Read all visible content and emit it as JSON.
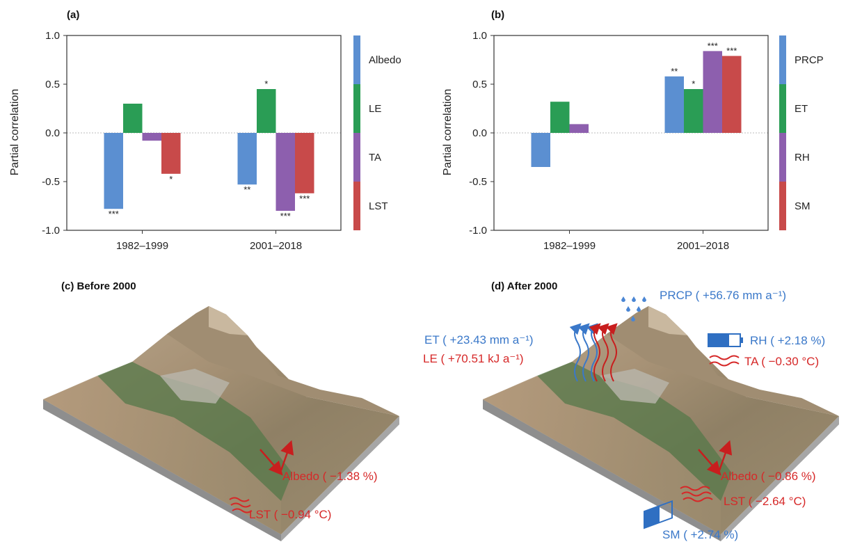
{
  "colors": {
    "blue": "#5b8fd1",
    "green": "#2a9d55",
    "purple": "#8d5fae",
    "red": "#c84a4a",
    "ann_red": "#d62828",
    "ann_blue": "#3a78c9"
  },
  "chart_data": [
    {
      "type": "bar",
      "panel_label": "(a)",
      "ylabel": "Partial correlation",
      "ylim": [
        -1.0,
        1.0
      ],
      "yticks": [
        "1.0",
        "0.5",
        "0.0",
        "-0.5",
        "-1.0"
      ],
      "categories": [
        "1982–1999",
        "2001–2018"
      ],
      "series": [
        {
          "name": "Albedo",
          "color": "#5b8fd1",
          "values": [
            -0.78,
            -0.53
          ],
          "sig": [
            "***",
            "**"
          ]
        },
        {
          "name": "LE",
          "color": "#2a9d55",
          "values": [
            0.3,
            0.45
          ],
          "sig": [
            "",
            "*"
          ]
        },
        {
          "name": "TA",
          "color": "#8d5fae",
          "values": [
            -0.08,
            -0.8
          ],
          "sig": [
            "",
            "***"
          ]
        },
        {
          "name": "LST",
          "color": "#c84a4a",
          "values": [
            -0.42,
            -0.62
          ],
          "sig": [
            "*",
            "***"
          ]
        }
      ]
    },
    {
      "type": "bar",
      "panel_label": "(b)",
      "ylabel": "Partial correlation",
      "ylim": [
        -1.0,
        1.0
      ],
      "yticks": [
        "1.0",
        "0.5",
        "0.0",
        "-0.5",
        "-1.0"
      ],
      "categories": [
        "1982–1999",
        "2001–2018"
      ],
      "series": [
        {
          "name": "PRCP",
          "color": "#5b8fd1",
          "values": [
            -0.35,
            0.58
          ],
          "sig": [
            "",
            "**"
          ]
        },
        {
          "name": "ET",
          "color": "#2a9d55",
          "values": [
            0.32,
            0.45
          ],
          "sig": [
            "",
            "*"
          ]
        },
        {
          "name": "RH",
          "color": "#8d5fae",
          "values": [
            0.09,
            0.84
          ],
          "sig": [
            "",
            "***"
          ]
        },
        {
          "name": "SM",
          "color": "#c84a4a",
          "values": [
            0.0,
            0.79
          ],
          "sig": [
            "",
            "***"
          ]
        }
      ]
    }
  ],
  "panel_c": {
    "title": "(c) Before 2000",
    "albedo": "Albedo ( −1.38 %)",
    "lst": "LST ( −0.94 °C)"
  },
  "panel_d": {
    "title": "(d) After 2000",
    "prcp": "PRCP ( +56.76 mm a⁻¹)",
    "et": "ET ( +23.43 mm a⁻¹)",
    "le": "LE ( +70.51 kJ a⁻¹)",
    "rh": "RH ( +2.18 %)",
    "ta": "TA ( −0.30 °C)",
    "albedo": "Albedo ( −0.86 %)",
    "lst": "LST ( −2.64 °C)",
    "sm": "SM ( +2.74 %)"
  }
}
